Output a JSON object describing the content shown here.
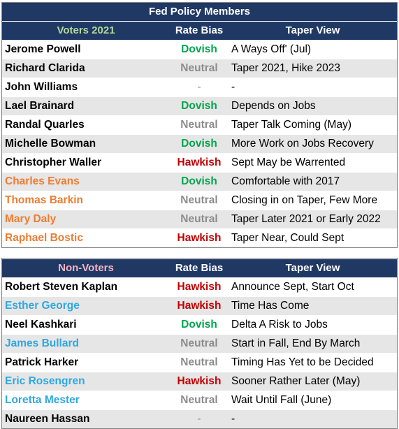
{
  "title": "Fed Policy Members",
  "colors": {
    "header_bg": "#1f3864",
    "voters_header_label": "#b4d89b",
    "nonvoters_header_label": "#f4b6c2",
    "dovish": "#00a650",
    "neutral": "#8c8c8c",
    "hawkish": "#c00000",
    "orange_name": "#ed7d31",
    "blue_name": "#2ea8e0"
  },
  "voters": {
    "header": {
      "group": "Voters 2021",
      "bias": "Rate Bias",
      "view": "Taper View"
    },
    "rows": [
      {
        "name": "Jerome Powell",
        "name_color": "black",
        "bias": "Dovish",
        "bias_type": "dovish",
        "view": "A Ways Off' (Jul)"
      },
      {
        "name": "Richard Clarida",
        "name_color": "black",
        "bias": "Neutral",
        "bias_type": "neutral",
        "view": "Taper 2021, Hike 2023"
      },
      {
        "name": "John Williams",
        "name_color": "black",
        "bias": "-",
        "bias_type": "none",
        "view": "-"
      },
      {
        "name": "Lael Brainard",
        "name_color": "black",
        "bias": "Dovish",
        "bias_type": "dovish",
        "view": "Depends on Jobs"
      },
      {
        "name": "Randal Quarles",
        "name_color": "black",
        "bias": "Neutral",
        "bias_type": "neutral",
        "view": "Taper Talk Coming (May)"
      },
      {
        "name": "Michelle Bowman",
        "name_color": "black",
        "bias": "Dovish",
        "bias_type": "dovish",
        "view": "More Work on Jobs Recovery"
      },
      {
        "name": "Christopher Waller",
        "name_color": "black",
        "bias": "Hawkish",
        "bias_type": "hawkish",
        "view": "Sept May be Warrented"
      },
      {
        "name": "Charles Evans",
        "name_color": "orange",
        "bias": "Dovish",
        "bias_type": "dovish",
        "view": "Comfortable with 2017"
      },
      {
        "name": "Thomas Barkin",
        "name_color": "orange",
        "bias": "Neutral",
        "bias_type": "neutral",
        "view": "Closing in on Taper, Few More"
      },
      {
        "name": "Mary Daly",
        "name_color": "orange",
        "bias": "Neutral",
        "bias_type": "neutral",
        "view": "Taper Later 2021 or Early 2022"
      },
      {
        "name": "Raphael Bostic",
        "name_color": "orange",
        "bias": "Hawkish",
        "bias_type": "hawkish",
        "view": "Taper Near, Could Sept"
      }
    ]
  },
  "nonvoters": {
    "header": {
      "group": "Non-Voters",
      "bias": "Rate Bias",
      "view": "Taper View"
    },
    "rows": [
      {
        "name": "Robert Steven Kaplan",
        "name_color": "black",
        "bias": "Hawkish",
        "bias_type": "hawkish",
        "view": "Announce Sept, Start Oct"
      },
      {
        "name": "Esther George",
        "name_color": "blue",
        "bias": "Hawkish",
        "bias_type": "hawkish",
        "view": "Time Has Come"
      },
      {
        "name": "Neel Kashkari",
        "name_color": "black",
        "bias": "Dovish",
        "bias_type": "dovish",
        "view": "Delta A Risk to Jobs"
      },
      {
        "name": "James Bullard",
        "name_color": "blue",
        "bias": "Neutral",
        "bias_type": "neutral",
        "view": "Start in Fall, End By March"
      },
      {
        "name": "Patrick Harker",
        "name_color": "black",
        "bias": "Neutral",
        "bias_type": "neutral",
        "view": "Timing Has Yet to be Decided"
      },
      {
        "name": "Eric Rosengren",
        "name_color": "blue",
        "bias": "Hawkish",
        "bias_type": "hawkish",
        "view": "Sooner Rather Later (May)"
      },
      {
        "name": "Loretta Mester",
        "name_color": "blue",
        "bias": "Neutral",
        "bias_type": "neutral",
        "view": "Wait Until Fall (June)"
      },
      {
        "name": "Naureen Hassan",
        "name_color": "black",
        "bias": "-",
        "bias_type": "none",
        "view": "-"
      }
    ]
  }
}
